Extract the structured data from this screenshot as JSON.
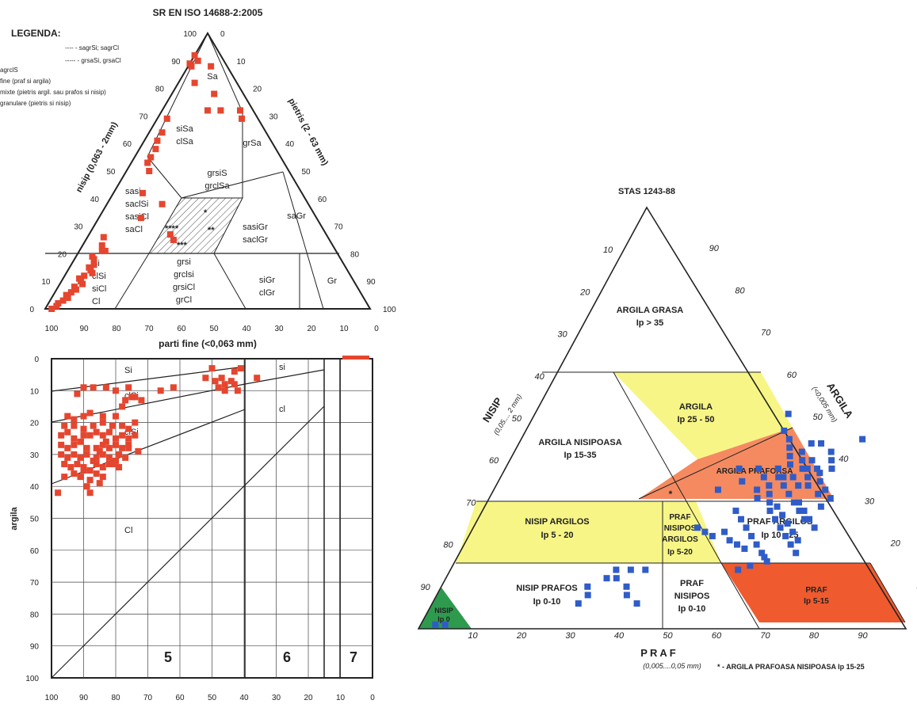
{
  "chart_data": [
    {
      "type": "scatter",
      "name": "ternary-sr-en-iso",
      "title": "SR EN ISO 14688-2:2005",
      "legend_title": "LEGENDA:",
      "legend_entries": [
        "agrclS",
        "fine (praf si argila)",
        "mixte (pietris argil. sau prafos si nisip)",
        "granulare (pietris si nisip)"
      ],
      "legend_lines": [
        "---- - sagrSi; sagrCl",
        "----- - grsaSi, grsaCl"
      ],
      "axis_left_label": "nisip (0,063 - 2mm)",
      "axis_right_label": "pietris (2 - 63 mm)",
      "axis_bottom_label": "parti fine (<0,063 mm)",
      "left_ticks": [
        "0",
        "10",
        "20",
        "30",
        "40",
        "50",
        "60",
        "70",
        "80",
        "90",
        "100"
      ],
      "right_ticks": [
        "0",
        "10",
        "20",
        "30",
        "40",
        "50",
        "60",
        "70",
        "80",
        "90",
        "100"
      ],
      "bottom_ticks": [
        "100",
        "90",
        "80",
        "70",
        "60",
        "50",
        "40",
        "30",
        "20",
        "10",
        "0"
      ],
      "zones": [
        {
          "id": "sa",
          "lines": [
            "Sa"
          ]
        },
        {
          "id": "sisa",
          "lines": [
            "siSa",
            "clSa"
          ]
        },
        {
          "id": "grsa",
          "lines": [
            "grSa"
          ]
        },
        {
          "id": "grsis",
          "lines": [
            "grsiS",
            "grclSa"
          ]
        },
        {
          "id": "sasi",
          "lines": [
            "sasi",
            "saclSi",
            "sasiCl",
            "saCl"
          ]
        },
        {
          "id": "sasigr",
          "lines": [
            "sasiGr",
            "saclGr"
          ]
        },
        {
          "id": "sagr",
          "lines": [
            "saGr"
          ]
        },
        {
          "id": "si",
          "lines": [
            "Si",
            "clSi",
            "siCl",
            "Cl"
          ]
        },
        {
          "id": "grsi",
          "lines": [
            "grsi",
            "grclsi",
            "grsiCl",
            "grCl"
          ]
        },
        {
          "id": "sigr",
          "lines": [
            "siGr",
            "clGr"
          ]
        },
        {
          "id": "gr",
          "lines": [
            "Gr"
          ]
        }
      ],
      "hatch_marks": [
        "*",
        "****",
        "**",
        "***"
      ],
      "points": [
        [
          0,
          92
        ],
        [
          0,
          89
        ],
        [
          1,
          88
        ],
        [
          2,
          90
        ],
        [
          7,
          88
        ],
        [
          5,
          82
        ],
        [
          13,
          78
        ],
        [
          14,
          72
        ],
        [
          18,
          72
        ],
        [
          24,
          72
        ],
        [
          26,
          69
        ],
        [
          3,
          69
        ],
        [
          4,
          64
        ],
        [
          4,
          61
        ],
        [
          5,
          58
        ],
        [
          5,
          55
        ],
        [
          5,
          53
        ],
        [
          7,
          50
        ],
        [
          9,
          42
        ],
        [
          17,
          38
        ],
        [
          27,
          25
        ],
        [
          25,
          27
        ],
        [
          13,
          33
        ],
        [
          5,
          26
        ],
        [
          6,
          23
        ],
        [
          7,
          21
        ],
        [
          8,
          21
        ],
        [
          5,
          19
        ],
        [
          6,
          18
        ],
        [
          7,
          16
        ],
        [
          6,
          15
        ],
        [
          7,
          14
        ],
        [
          8,
          13
        ],
        [
          6,
          12
        ],
        [
          5,
          11
        ],
        [
          6,
          10
        ],
        [
          7,
          9
        ],
        [
          5,
          8
        ],
        [
          6,
          7
        ],
        [
          5,
          6
        ],
        [
          4,
          5
        ],
        [
          5,
          4
        ],
        [
          4,
          3
        ],
        [
          3,
          2
        ],
        [
          3,
          1
        ],
        [
          2,
          0
        ]
      ]
    },
    {
      "type": "scatter",
      "name": "plasticity-chart",
      "xlabel": "",
      "ylabel": "argila",
      "x_ticks": [
        "100",
        "90",
        "80",
        "70",
        "60",
        "50",
        "40",
        "30",
        "20",
        "10",
        "0"
      ],
      "y_ticks": [
        "0",
        "10",
        "20",
        "30",
        "40",
        "50",
        "60",
        "70",
        "80",
        "90",
        "100"
      ],
      "zone_labels": [
        "Si",
        "clSi",
        "clSi",
        "si",
        "cl",
        "Cl"
      ],
      "group_labels": [
        "5",
        "6",
        "7"
      ],
      "points": [
        [
          90,
          9
        ],
        [
          87,
          9
        ],
        [
          83,
          9
        ],
        [
          92,
          11
        ],
        [
          80,
          10
        ],
        [
          76,
          9
        ],
        [
          66,
          10
        ],
        [
          62,
          9
        ],
        [
          52,
          6
        ],
        [
          47,
          6
        ],
        [
          44,
          7
        ],
        [
          46,
          8
        ],
        [
          43,
          8
        ],
        [
          36,
          6
        ],
        [
          43,
          4
        ],
        [
          41,
          3
        ],
        [
          50,
          3
        ],
        [
          49,
          7
        ],
        [
          48,
          9
        ],
        [
          46,
          10
        ],
        [
          42,
          10
        ],
        [
          95,
          18
        ],
        [
          93,
          19
        ],
        [
          90,
          18
        ],
        [
          88,
          17
        ],
        [
          84,
          18
        ],
        [
          80,
          18
        ],
        [
          78,
          15
        ],
        [
          77,
          13
        ],
        [
          75,
          12
        ],
        [
          74,
          12
        ],
        [
          72,
          13
        ],
        [
          96,
          21
        ],
        [
          93,
          21
        ],
        [
          90,
          22
        ],
        [
          87,
          21
        ],
        [
          84,
          20
        ],
        [
          81,
          21
        ],
        [
          78,
          21
        ],
        [
          76,
          22
        ],
        [
          74,
          20
        ],
        [
          97,
          24
        ],
        [
          95,
          23
        ],
        [
          93,
          25
        ],
        [
          90,
          24
        ],
        [
          88,
          24
        ],
        [
          86,
          23
        ],
        [
          84,
          24
        ],
        [
          82,
          23
        ],
        [
          80,
          25
        ],
        [
          78,
          24
        ],
        [
          76,
          25
        ],
        [
          74,
          24
        ],
        [
          97,
          27
        ],
        [
          95,
          28
        ],
        [
          93,
          27
        ],
        [
          91,
          26
        ],
        [
          89,
          28
        ],
        [
          86,
          28
        ],
        [
          84,
          27
        ],
        [
          82,
          28
        ],
        [
          80,
          27
        ],
        [
          78,
          28
        ],
        [
          76,
          27
        ],
        [
          97,
          30
        ],
        [
          95,
          31
        ],
        [
          93,
          30
        ],
        [
          91,
          31
        ],
        [
          89,
          30
        ],
        [
          86,
          31
        ],
        [
          84,
          30
        ],
        [
          82,
          31
        ],
        [
          79,
          30
        ],
        [
          77,
          31
        ],
        [
          96,
          33
        ],
        [
          94,
          34
        ],
        [
          92,
          33
        ],
        [
          90,
          34
        ],
        [
          88,
          35
        ],
        [
          86,
          33
        ],
        [
          84,
          34
        ],
        [
          82,
          33
        ],
        [
          80,
          32
        ],
        [
          96,
          37
        ],
        [
          93,
          36
        ],
        [
          91,
          37
        ],
        [
          88,
          38
        ],
        [
          86,
          36
        ],
        [
          84,
          37
        ],
        [
          98,
          42
        ],
        [
          89,
          40
        ],
        [
          88,
          42
        ],
        [
          85,
          39
        ],
        [
          90,
          35
        ],
        [
          87,
          32
        ],
        [
          85,
          29
        ],
        [
          83,
          26
        ],
        [
          81,
          33
        ],
        [
          79,
          34
        ],
        [
          76,
          28
        ],
        [
          73,
          29
        ]
      ]
    },
    {
      "type": "scatter",
      "name": "ternary-stas",
      "title": "STAS 1243-88",
      "axis_left_label": "NISIP",
      "axis_left_sublabel": "(0,05.... 2 mm)",
      "axis_right_label": "ARGILA",
      "axis_right_sublabel": "(<0,005 mm)",
      "axis_bottom_label": "PRAF",
      "axis_bottom_sublabel": "(0,005....0,05 mm)",
      "left_ticks": [
        "10",
        "20",
        "30",
        "40",
        "50",
        "60",
        "70",
        "80",
        "90"
      ],
      "right_ticks": [
        "90",
        "80",
        "70",
        "60",
        "50",
        "40",
        "30",
        "20",
        "10"
      ],
      "bottom_ticks": [
        "10",
        "20",
        "30",
        "40",
        "50",
        "60",
        "70",
        "80",
        "90"
      ],
      "note": "* - ARGILA PRAFOASA NISIPOASA  Ip 15-25",
      "zones": [
        {
          "id": "grasa",
          "lines": [
            "ARGILA GRASA",
            "Ip > 35"
          ]
        },
        {
          "id": "argila",
          "lines": [
            "ARGILA",
            "Ip 25 - 50"
          ]
        },
        {
          "id": "argila-nisipoasa",
          "lines": [
            "ARGILA NISIPOASA",
            "Ip 15-35"
          ]
        },
        {
          "id": "argila-prafoasa",
          "lines": [
            "ARGILA PRAFOASA"
          ]
        },
        {
          "id": "nisip-argilos",
          "lines": [
            "NISIP ARGILOS",
            "Ip  5 - 20"
          ]
        },
        {
          "id": "praf-nisipos-argilos",
          "lines": [
            "PRAF",
            "NISIPOS",
            "ARGILOS",
            "Ip 5-20"
          ]
        },
        {
          "id": "praf-argilos",
          "lines": [
            "PRAF  ARGILOS",
            "Ip 10 - 25"
          ]
        },
        {
          "id": "nisip-prafos",
          "lines": [
            "NISIP PRAFOS",
            "Ip 0-10"
          ]
        },
        {
          "id": "praf-nisipos",
          "lines": [
            "PRAF",
            "NISIPOS",
            "Ip 0-10"
          ]
        },
        {
          "id": "praf",
          "lines": [
            "PRAF",
            "Ip 5-15"
          ]
        },
        {
          "id": "nisip",
          "lines": [
            "NISIP",
            "Ip 0"
          ]
        }
      ],
      "points": [
        [
          70,
          45
        ],
        [
          52,
          51
        ],
        [
          53,
          47
        ],
        [
          55,
          45
        ],
        [
          56,
          43
        ],
        [
          57,
          41
        ],
        [
          58,
          39
        ],
        [
          59,
          42
        ],
        [
          60,
          44
        ],
        [
          61,
          38
        ],
        [
          62,
          40
        ],
        [
          63,
          36
        ],
        [
          64,
          34
        ],
        [
          65,
          37
        ],
        [
          66,
          35
        ],
        [
          67,
          32
        ],
        [
          68,
          33
        ],
        [
          69,
          29
        ],
        [
          70,
          31
        ],
        [
          54,
          33
        ],
        [
          55,
          31
        ],
        [
          56,
          34
        ],
        [
          57,
          32
        ],
        [
          58,
          30
        ],
        [
          59,
          28
        ],
        [
          60,
          29
        ],
        [
          61,
          26
        ],
        [
          62,
          27
        ],
        [
          63,
          24
        ],
        [
          64,
          25
        ],
        [
          65,
          22
        ],
        [
          66,
          23
        ],
        [
          67,
          20
        ],
        [
          68,
          21
        ],
        [
          69,
          18
        ],
        [
          60,
          36
        ],
        [
          62,
          34
        ],
        [
          64,
          30
        ],
        [
          66,
          28
        ],
        [
          68,
          26
        ],
        [
          70,
          24
        ],
        [
          57,
          36
        ],
        [
          59,
          34
        ],
        [
          61,
          32
        ],
        [
          63,
          30
        ],
        [
          65,
          28
        ],
        [
          67,
          26
        ],
        [
          52,
          38
        ],
        [
          54,
          36
        ],
        [
          56,
          38
        ],
        [
          58,
          36
        ],
        [
          60,
          40
        ],
        [
          62,
          38
        ],
        [
          64,
          38
        ],
        [
          66,
          40
        ],
        [
          48,
          38
        ],
        [
          50,
          35
        ],
        [
          46,
          33
        ],
        [
          52,
          28
        ],
        [
          54,
          26
        ],
        [
          56,
          24
        ],
        [
          58,
          22
        ],
        [
          60,
          20
        ],
        [
          62,
          18
        ],
        [
          64,
          16
        ],
        [
          58,
          19
        ],
        [
          56,
          20
        ],
        [
          54,
          21
        ],
        [
          52,
          23
        ],
        [
          50,
          22
        ],
        [
          48,
          23
        ],
        [
          46,
          24
        ],
        [
          63,
          17
        ],
        [
          61,
          15
        ],
        [
          59,
          14
        ],
        [
          34,
          14
        ],
        [
          33,
          12
        ],
        [
          30,
          10
        ],
        [
          35,
          12
        ],
        [
          37,
          14
        ],
        [
          40,
          14
        ],
        [
          38,
          10
        ],
        [
          39,
          8
        ],
        [
          42,
          6
        ],
        [
          30,
          6
        ],
        [
          31,
          8
        ],
        [
          5,
          1
        ],
        [
          3,
          1
        ],
        [
          62,
          44
        ],
        [
          65,
          42
        ],
        [
          67,
          38
        ]
      ]
    }
  ]
}
